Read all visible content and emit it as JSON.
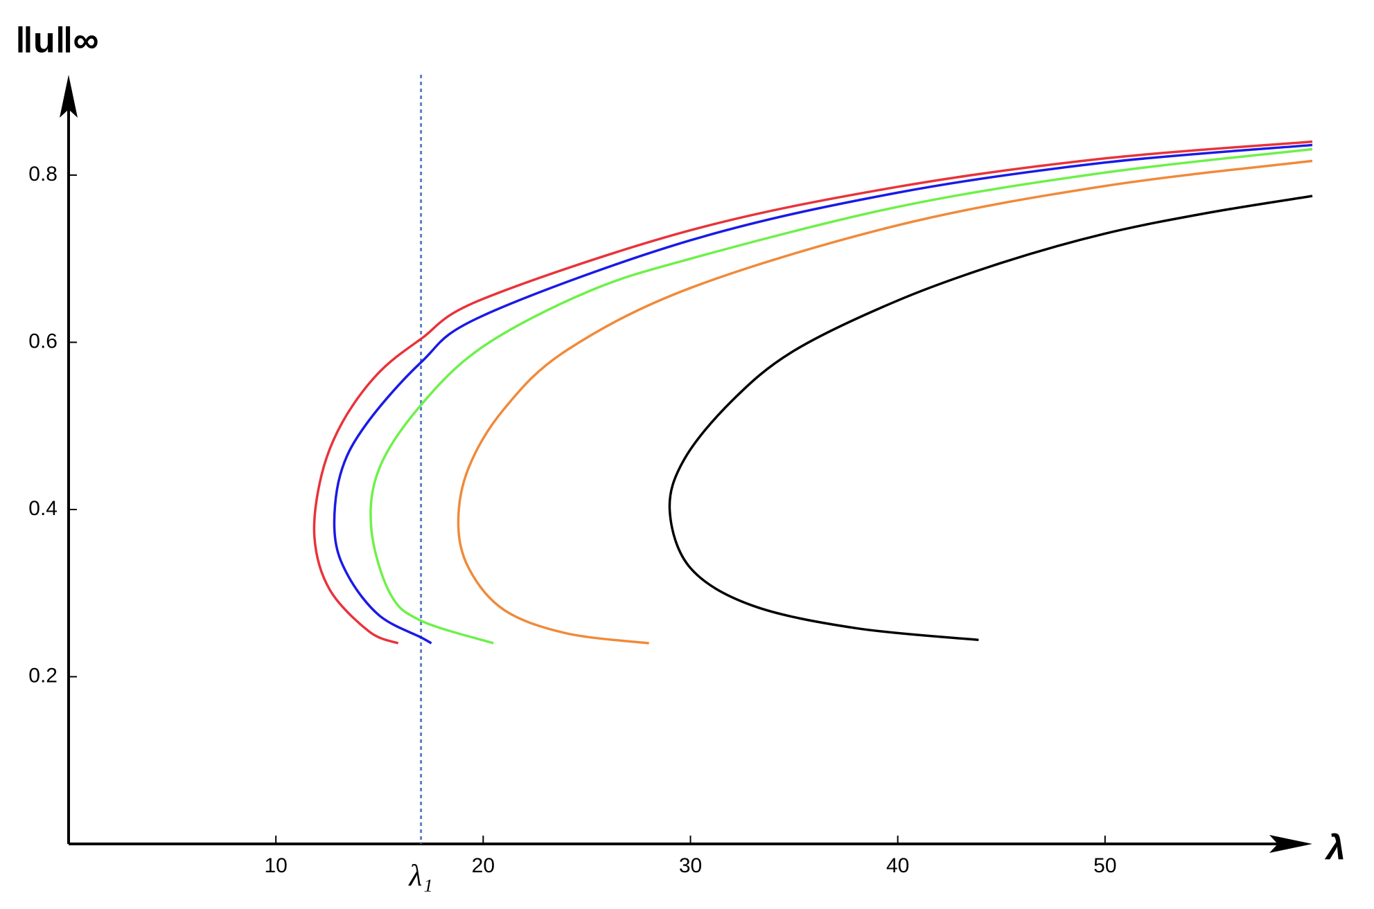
{
  "chart_data": {
    "type": "line",
    "x_label": "λ",
    "y_label": "‖u‖∞",
    "xlim": [
      0,
      60
    ],
    "ylim": [
      0,
      0.92
    ],
    "xticks": [
      10,
      20,
      30,
      40,
      50
    ],
    "yticks": [
      0.2,
      0.4,
      0.6,
      0.8
    ],
    "annotation": {
      "text": "λ₁",
      "x": 17,
      "color": "#5b7fc7"
    },
    "series": [
      {
        "color": "#e8333a",
        "x": [
          15.9,
          14.5,
          12.6,
          11.86,
          12.2,
          13.2,
          14.9,
          17,
          20,
          30,
          40,
          50,
          60
        ],
        "values": [
          0.24,
          0.254,
          0.304,
          0.367,
          0.441,
          0.504,
          0.562,
          0.604,
          0.652,
          0.734,
          0.786,
          0.82,
          0.84
        ]
      },
      {
        "color": "#1a1ae6",
        "x": [
          17.5,
          17,
          15,
          13.5,
          12.84,
          13.1,
          14.3,
          17,
          20,
          30,
          40,
          50,
          60
        ],
        "values": [
          0.24,
          0.247,
          0.273,
          0.32,
          0.37,
          0.441,
          0.5,
          0.576,
          0.632,
          0.722,
          0.779,
          0.815,
          0.836
        ]
      },
      {
        "color": "#6ef04a",
        "x": [
          20.5,
          17,
          15.5,
          14.6,
          15,
          17,
          20,
          25,
          30,
          40,
          50,
          60
        ],
        "values": [
          0.24,
          0.267,
          0.3,
          0.378,
          0.45,
          0.525,
          0.595,
          0.66,
          0.7,
          0.762,
          0.803,
          0.831
        ]
      },
      {
        "color": "#f08a3a",
        "x": [
          28,
          24,
          21,
          19.3,
          18.8,
          19.3,
          21,
          24,
          30,
          40,
          50,
          60
        ],
        "values": [
          0.24,
          0.252,
          0.28,
          0.33,
          0.385,
          0.45,
          0.52,
          0.59,
          0.665,
          0.74,
          0.787,
          0.817
        ]
      },
      {
        "color": "#000000",
        "x": [
          43.9,
          38,
          33,
          30,
          29,
          29.7,
          32,
          35,
          40,
          45,
          50,
          55,
          60
        ],
        "values": [
          0.244,
          0.258,
          0.285,
          0.33,
          0.399,
          0.46,
          0.53,
          0.59,
          0.65,
          0.695,
          0.73,
          0.755,
          0.775
        ]
      }
    ]
  }
}
